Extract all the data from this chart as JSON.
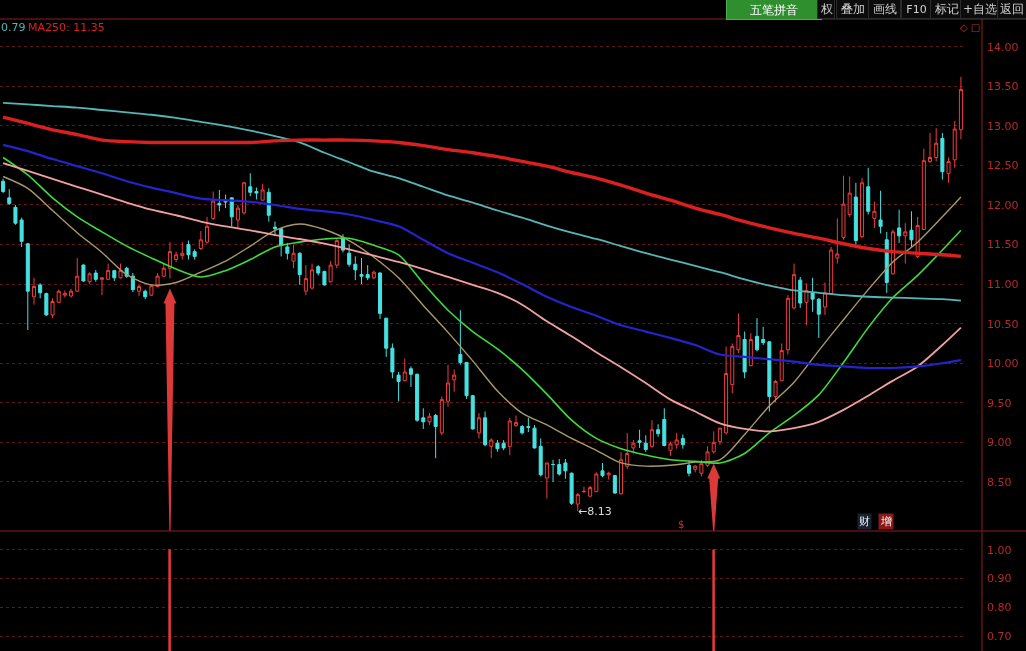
{
  "chart_data": [
    {
      "type": "candlestick",
      "categories": [
        null,
        null,
        null,
        null,
        null,
        null,
        null,
        null,
        null,
        null,
        null,
        null,
        null,
        null,
        null,
        null,
        null,
        null,
        null,
        null,
        null,
        null,
        null,
        null,
        null,
        null,
        null,
        null,
        null,
        null,
        null,
        null,
        null,
        null,
        null,
        null,
        null,
        null,
        null,
        null,
        null,
        null,
        null,
        null,
        null,
        null,
        null,
        null,
        null,
        null,
        null,
        null,
        null,
        null,
        null,
        null,
        null,
        null,
        null,
        null,
        null,
        null,
        null,
        null,
        null,
        null,
        null,
        null,
        null,
        null,
        null,
        null,
        null,
        null,
        null,
        null,
        null,
        null,
        null,
        null,
        null,
        null,
        null,
        null,
        null,
        null,
        null,
        null,
        null,
        null,
        null,
        null,
        null,
        null,
        null,
        null,
        null,
        null,
        null,
        null,
        null,
        null,
        null,
        null,
        null,
        null,
        null,
        null,
        null,
        null,
        null,
        null,
        null,
        null,
        null,
        null,
        null,
        null,
        null,
        null,
        null,
        null,
        null,
        null,
        null,
        null,
        null,
        null,
        null,
        null,
        null,
        null,
        null,
        null,
        null,
        null,
        null,
        null,
        null,
        null,
        null,
        null,
        null,
        null,
        null,
        null,
        null,
        null,
        null,
        null,
        null,
        null,
        null,
        null,
        null,
        null
      ],
      "ohlc": [
        [
          12.3,
          12.33,
          12.15,
          12.17
        ],
        [
          12.09,
          12.2,
          12.0,
          12.02
        ],
        [
          11.97,
          12.0,
          11.75,
          11.77
        ],
        [
          11.81,
          11.84,
          11.47,
          11.54
        ],
        [
          11.51,
          11.52,
          10.42,
          10.91
        ],
        [
          10.84,
          11.08,
          10.74,
          10.97
        ],
        [
          10.99,
          11.01,
          10.82,
          10.89
        ],
        [
          10.88,
          10.89,
          10.6,
          10.61
        ],
        [
          10.61,
          10.82,
          10.57,
          10.78
        ],
        [
          10.77,
          10.93,
          10.76,
          10.91
        ],
        [
          10.86,
          10.92,
          10.83,
          10.88
        ],
        [
          10.85,
          10.94,
          10.83,
          10.91
        ],
        [
          10.91,
          11.33,
          10.9,
          11.1
        ],
        [
          11.24,
          11.25,
          11.03,
          11.04
        ],
        [
          11.03,
          11.15,
          11.0,
          11.13
        ],
        [
          11.14,
          11.18,
          11.03,
          11.06
        ],
        [
          11.06,
          11.08,
          10.86,
          11.08
        ],
        [
          11.06,
          11.26,
          11.05,
          11.17
        ],
        [
          11.17,
          11.18,
          11.04,
          11.08
        ],
        [
          11.08,
          11.26,
          11.07,
          11.17
        ],
        [
          11.2,
          11.22,
          11.08,
          11.1
        ],
        [
          11.1,
          11.14,
          10.9,
          10.93
        ],
        [
          10.91,
          10.99,
          10.85,
          10.97
        ],
        [
          10.91,
          10.93,
          10.81,
          10.84
        ],
        [
          10.86,
          10.99,
          10.85,
          10.98
        ],
        [
          10.97,
          11.14,
          10.96,
          11.1
        ],
        [
          11.1,
          11.26,
          11.09,
          11.2
        ],
        [
          11.2,
          11.53,
          11.07,
          11.41
        ],
        [
          11.31,
          11.41,
          11.28,
          11.37
        ],
        [
          11.36,
          11.53,
          11.31,
          11.39
        ],
        [
          11.5,
          11.55,
          11.31,
          11.37
        ],
        [
          11.41,
          11.44,
          11.31,
          11.35
        ],
        [
          11.45,
          11.67,
          11.43,
          11.56
        ],
        [
          11.53,
          11.85,
          11.51,
          11.73
        ],
        [
          11.83,
          12.17,
          11.81,
          12.05
        ],
        [
          12.02,
          12.19,
          11.92,
          12.0
        ],
        [
          12.05,
          12.13,
          11.96,
          12.04
        ],
        [
          12.09,
          12.1,
          11.73,
          11.85
        ],
        [
          11.81,
          12.0,
          11.71,
          11.96
        ],
        [
          11.9,
          12.29,
          11.88,
          12.28
        ],
        [
          12.23,
          12.4,
          12.11,
          12.16
        ],
        [
          12.17,
          12.22,
          12.07,
          12.15
        ],
        [
          12.06,
          12.27,
          12.06,
          12.19
        ],
        [
          12.16,
          12.21,
          11.79,
          11.87
        ],
        [
          11.72,
          11.79,
          11.62,
          11.7
        ],
        [
          11.7,
          11.71,
          11.35,
          11.49
        ],
        [
          11.47,
          11.52,
          11.31,
          11.39
        ],
        [
          11.29,
          11.5,
          11.2,
          11.39
        ],
        [
          11.39,
          11.4,
          10.99,
          11.12
        ],
        [
          10.91,
          11.24,
          10.86,
          11.07
        ],
        [
          10.95,
          11.26,
          10.93,
          11.18
        ],
        [
          11.22,
          11.24,
          11.11,
          11.14
        ],
        [
          11.16,
          11.17,
          10.98,
          10.99
        ],
        [
          11.03,
          11.29,
          11.02,
          11.24
        ],
        [
          11.24,
          11.58,
          11.2,
          11.55
        ],
        [
          11.59,
          11.63,
          11.4,
          11.43
        ],
        [
          11.39,
          11.5,
          11.22,
          11.25
        ],
        [
          11.25,
          11.35,
          11.05,
          11.18
        ],
        [
          11.12,
          11.33,
          11.0,
          11.1
        ],
        [
          11.12,
          11.24,
          11.05,
          11.08
        ],
        [
          11.08,
          11.17,
          11.06,
          11.15
        ],
        [
          11.14,
          11.15,
          10.56,
          10.63
        ],
        [
          10.57,
          10.57,
          10.08,
          10.19
        ],
        [
          10.19,
          10.25,
          9.81,
          9.89
        ],
        [
          9.85,
          9.89,
          9.52,
          9.77
        ],
        [
          9.78,
          10.06,
          9.77,
          9.89
        ],
        [
          9.93,
          9.96,
          9.7,
          9.86
        ],
        [
          9.86,
          9.87,
          9.26,
          9.28
        ],
        [
          9.31,
          9.43,
          9.17,
          9.26
        ],
        [
          9.26,
          9.37,
          9.22,
          9.33
        ],
        [
          9.34,
          9.36,
          8.8,
          9.2
        ],
        [
          9.12,
          9.58,
          9.09,
          9.54
        ],
        [
          9.52,
          9.98,
          9.45,
          9.75
        ],
        [
          9.79,
          9.92,
          9.64,
          9.85
        ],
        [
          10.11,
          10.67,
          9.98,
          10.01
        ],
        [
          10.01,
          10.01,
          9.55,
          9.59
        ],
        [
          9.59,
          9.6,
          9.16,
          9.17
        ],
        [
          9.12,
          9.37,
          9.05,
          9.31
        ],
        [
          9.31,
          9.39,
          8.95,
          8.97
        ],
        [
          8.95,
          9.05,
          8.8,
          9.03
        ],
        [
          8.99,
          9.03,
          8.88,
          8.92
        ],
        [
          8.99,
          9.03,
          8.9,
          8.93
        ],
        [
          8.95,
          9.31,
          8.84,
          9.27
        ],
        [
          9.21,
          9.34,
          9.2,
          9.25
        ],
        [
          9.2,
          9.22,
          9.1,
          9.12
        ],
        [
          9.2,
          9.31,
          9.13,
          9.19
        ],
        [
          9.18,
          9.22,
          8.92,
          8.93
        ],
        [
          8.95,
          9.05,
          8.57,
          8.59
        ],
        [
          8.55,
          8.74,
          8.29,
          8.74
        ],
        [
          8.72,
          8.78,
          8.5,
          8.72
        ],
        [
          8.72,
          8.79,
          8.58,
          8.6
        ],
        [
          8.74,
          8.79,
          8.54,
          8.64
        ],
        [
          8.61,
          8.62,
          8.21,
          8.23
        ],
        [
          8.22,
          8.36,
          8.13,
          8.34
        ],
        [
          8.38,
          8.44,
          8.36,
          8.38
        ],
        [
          8.32,
          8.45,
          8.31,
          8.43
        ],
        [
          8.38,
          8.62,
          8.37,
          8.6
        ],
        [
          8.64,
          8.74,
          8.56,
          8.58
        ],
        [
          8.59,
          8.63,
          8.53,
          8.61
        ],
        [
          8.58,
          8.59,
          8.35,
          8.36
        ],
        [
          8.35,
          8.88,
          8.34,
          8.78
        ],
        [
          8.7,
          9.12,
          8.66,
          8.86
        ],
        [
          8.93,
          9.03,
          8.86,
          8.99
        ],
        [
          9.02,
          9.16,
          8.93,
          9.0
        ],
        [
          8.99,
          9.09,
          8.88,
          8.91
        ],
        [
          8.95,
          9.28,
          8.93,
          9.16
        ],
        [
          9.16,
          9.23,
          9.07,
          9.11
        ],
        [
          9.29,
          9.43,
          8.95,
          8.96
        ],
        [
          8.9,
          9.01,
          8.83,
          8.98
        ],
        [
          8.97,
          9.12,
          8.92,
          9.03
        ],
        [
          9.05,
          9.1,
          8.92,
          8.97
        ],
        [
          8.71,
          8.77,
          8.57,
          8.61
        ],
        [
          8.66,
          8.71,
          8.62,
          8.7
        ],
        [
          8.61,
          8.78,
          8.57,
          8.73
        ],
        [
          8.71,
          8.95,
          8.69,
          8.88
        ],
        [
          8.88,
          9.14,
          8.86,
          9.0
        ],
        [
          9.01,
          9.18,
          8.97,
          9.18
        ],
        [
          9.12,
          10.21,
          9.1,
          9.87
        ],
        [
          9.73,
          10.25,
          9.62,
          10.21
        ],
        [
          10.17,
          10.63,
          10.13,
          10.35
        ],
        [
          10.3,
          10.4,
          9.81,
          9.89
        ],
        [
          9.97,
          10.38,
          9.96,
          10.3
        ],
        [
          10.34,
          10.57,
          10.15,
          10.17
        ],
        [
          10.3,
          10.46,
          10.23,
          10.26
        ],
        [
          10.27,
          10.28,
          9.39,
          9.58
        ],
        [
          9.58,
          9.79,
          9.51,
          9.77
        ],
        [
          9.78,
          10.25,
          9.77,
          10.16
        ],
        [
          10.17,
          10.86,
          10.11,
          10.82
        ],
        [
          10.7,
          11.26,
          10.68,
          11.12
        ],
        [
          11.05,
          11.09,
          10.7,
          10.76
        ],
        [
          10.77,
          11.01,
          10.48,
          10.92
        ],
        [
          10.89,
          11.08,
          10.65,
          10.81
        ],
        [
          10.81,
          10.82,
          10.32,
          10.62
        ],
        [
          10.71,
          11.02,
          10.61,
          10.89
        ],
        [
          10.88,
          11.47,
          10.87,
          11.43
        ],
        [
          11.33,
          11.83,
          11.26,
          11.38
        ],
        [
          11.59,
          12.37,
          11.56,
          12.01
        ],
        [
          11.88,
          12.36,
          11.85,
          12.15
        ],
        [
          12.1,
          12.28,
          11.48,
          11.55
        ],
        [
          11.6,
          12.34,
          11.58,
          12.28
        ],
        [
          12.23,
          12.47,
          11.88,
          11.92
        ],
        [
          11.83,
          12.04,
          11.71,
          11.92
        ],
        [
          11.81,
          12.18,
          11.64,
          11.73
        ],
        [
          11.56,
          11.66,
          10.89,
          11.02
        ],
        [
          11.13,
          11.69,
          11.12,
          11.66
        ],
        [
          11.71,
          11.94,
          11.52,
          11.61
        ],
        [
          11.61,
          11.77,
          11.26,
          11.66
        ],
        [
          11.68,
          11.92,
          11.47,
          11.56
        ],
        [
          11.35,
          11.85,
          11.33,
          11.74
        ],
        [
          11.69,
          12.71,
          11.69,
          12.56
        ],
        [
          12.55,
          12.91,
          12.53,
          12.6
        ],
        [
          12.6,
          12.97,
          12.55,
          12.78
        ],
        [
          12.84,
          12.91,
          12.32,
          12.42
        ],
        [
          12.4,
          12.6,
          12.28,
          12.55
        ],
        [
          12.57,
          13.06,
          12.47,
          12.96
        ],
        [
          12.95,
          13.62,
          12.83,
          13.46
        ]
      ],
      "series": [
        {
          "type": "line",
          "color": "#a89a66",
          "values": [
            12.36,
            null,
            null,
            null,
            12.21,
            null,
            null,
            null,
            11.93,
            null,
            null,
            null,
            11.65,
            null,
            null,
            null,
            11.4,
            null,
            null,
            null,
            11.12,
            null,
            null,
            null,
            10.99,
            null,
            null,
            null,
            11.02,
            null,
            null,
            null,
            11.15,
            null,
            null,
            null,
            11.29,
            null,
            null,
            null,
            11.48,
            null,
            null,
            null,
            11.68,
            null,
            null,
            null,
            11.76,
            null,
            null,
            null,
            11.69,
            null,
            null,
            null,
            11.55,
            null,
            null,
            null,
            11.34,
            null,
            null,
            null,
            11.08,
            null,
            null,
            null,
            10.73,
            null,
            null,
            null,
            10.39,
            null,
            null,
            null,
            10.03,
            null,
            null,
            null,
            9.65,
            null,
            null,
            null,
            9.37,
            null,
            null,
            null,
            9.22,
            null,
            null,
            null,
            9.05,
            null,
            null,
            null,
            8.9,
            null,
            null,
            null,
            8.74,
            null,
            null,
            null,
            8.7,
            null,
            null,
            null,
            8.71,
            null,
            null,
            null,
            8.75,
            null,
            null,
            null,
            8.78,
            null,
            null,
            null,
            9.1,
            null,
            null,
            null,
            9.46,
            null,
            null,
            null,
            9.76,
            null,
            null,
            null,
            10.16,
            null,
            null,
            null,
            10.55,
            null,
            null,
            null,
            10.93,
            null,
            null,
            null,
            11.28,
            null,
            null,
            null,
            11.53,
            null,
            null,
            null,
            11.85,
            null,
            null,
            12.1
          ]
        },
        {
          "type": "line",
          "color": "#3cdc3c",
          "values": [
            12.6,
            null,
            null,
            null,
            12.38,
            null,
            null,
            null,
            12.09,
            null,
            null,
            null,
            11.85,
            null,
            null,
            null,
            11.66,
            null,
            null,
            null,
            11.48,
            null,
            null,
            null,
            11.33,
            null,
            null,
            null,
            11.19,
            null,
            null,
            null,
            11.09,
            null,
            null,
            null,
            11.17,
            null,
            null,
            null,
            11.31,
            null,
            null,
            null,
            11.47,
            null,
            null,
            null,
            11.53,
            null,
            null,
            null,
            11.57,
            null,
            null,
            null,
            11.58,
            null,
            null,
            null,
            11.49,
            null,
            null,
            null,
            11.37,
            null,
            null,
            null,
            11.01,
            null,
            null,
            null,
            10.67,
            null,
            null,
            null,
            10.4,
            null,
            null,
            null,
            10.18,
            null,
            null,
            null,
            9.92,
            null,
            null,
            null,
            9.61,
            null,
            null,
            null,
            9.28,
            null,
            null,
            null,
            9.05,
            null,
            null,
            null,
            8.92,
            null,
            null,
            null,
            8.84,
            null,
            null,
            null,
            8.78,
            null,
            null,
            null,
            8.76,
            null,
            null,
            null,
            8.74,
            null,
            null,
            null,
            8.86,
            null,
            null,
            null,
            9.12,
            null,
            null,
            null,
            9.34,
            null,
            null,
            null,
            9.6,
            null,
            null,
            null,
            10.01,
            null,
            null,
            null,
            10.45,
            null,
            null,
            null,
            10.83,
            null,
            null,
            null,
            11.11,
            null,
            null,
            null,
            11.43,
            null,
            null,
            11.68
          ]
        },
        {
          "type": "line",
          "color": "#f0a0a0",
          "values": [
            12.53,
            null,
            null,
            null,
            12.43,
            null,
            null,
            null,
            12.33,
            null,
            null,
            null,
            12.23,
            null,
            null,
            null,
            12.13,
            null,
            null,
            null,
            12.03,
            null,
            null,
            null,
            11.94,
            null,
            null,
            null,
            11.87,
            null,
            null,
            null,
            11.79,
            null,
            null,
            null,
            11.73,
            null,
            null,
            null,
            11.68,
            null,
            null,
            null,
            11.62,
            null,
            null,
            null,
            11.57,
            null,
            null,
            null,
            11.51,
            null,
            null,
            null,
            11.44,
            null,
            null,
            null,
            11.36,
            null,
            null,
            null,
            11.28,
            null,
            null,
            null,
            11.19,
            null,
            null,
            null,
            11.09,
            null,
            null,
            null,
            10.99,
            null,
            null,
            null,
            10.89,
            null,
            null,
            null,
            10.74,
            null,
            null,
            null,
            10.53,
            null,
            null,
            null,
            10.34,
            null,
            null,
            null,
            10.14,
            null,
            null,
            null,
            9.95,
            null,
            null,
            null,
            9.75,
            null,
            null,
            null,
            9.54,
            null,
            null,
            null,
            9.39,
            null,
            null,
            null,
            9.24,
            null,
            null,
            null,
            9.17,
            null,
            null,
            null,
            9.14,
            null,
            null,
            null,
            9.18,
            null,
            null,
            null,
            9.26,
            null,
            null,
            null,
            9.41,
            null,
            null,
            null,
            9.59,
            null,
            null,
            null,
            9.78,
            null,
            null,
            null,
            9.96,
            null,
            null,
            null,
            10.23,
            null,
            null,
            10.45
          ]
        },
        {
          "type": "line",
          "color": "#2424cc",
          "values": [
            12.76,
            null,
            null,
            null,
            12.68,
            null,
            null,
            null,
            12.58,
            null,
            null,
            null,
            12.49,
            null,
            null,
            null,
            12.4,
            null,
            null,
            null,
            12.3,
            null,
            null,
            null,
            12.22,
            null,
            null,
            null,
            12.15,
            null,
            null,
            null,
            12.08,
            null,
            null,
            null,
            12.06,
            null,
            null,
            null,
            12.04,
            null,
            null,
            null,
            12.0,
            null,
            null,
            null,
            11.95,
            null,
            null,
            null,
            11.92,
            null,
            null,
            null,
            11.88,
            null,
            null,
            null,
            11.81,
            null,
            null,
            null,
            11.73,
            null,
            null,
            null,
            11.56,
            null,
            null,
            null,
            11.39,
            null,
            null,
            null,
            11.27,
            null,
            null,
            null,
            11.15,
            null,
            null,
            null,
            11.0,
            null,
            null,
            null,
            10.84,
            null,
            null,
            null,
            10.71,
            null,
            null,
            null,
            10.6,
            null,
            null,
            null,
            10.48,
            null,
            null,
            null,
            10.4,
            null,
            null,
            null,
            10.32,
            null,
            null,
            null,
            10.23,
            null,
            null,
            null,
            10.11,
            null,
            null,
            null,
            10.08,
            null,
            null,
            null,
            10.05,
            null,
            null,
            null,
            10.02,
            null,
            null,
            null,
            9.98,
            null,
            null,
            null,
            9.96,
            null,
            null,
            null,
            9.94,
            null,
            null,
            null,
            9.94,
            null,
            null,
            null,
            9.96,
            null,
            null,
            null,
            10.0,
            null,
            null,
            10.04
          ]
        },
        {
          "type": "line",
          "name": "0.79",
          "color": "#54b6b6",
          "values": [
            13.29,
            null,
            null,
            null,
            13.27,
            null,
            null,
            null,
            13.25,
            null,
            null,
            null,
            13.23,
            null,
            null,
            null,
            13.2,
            null,
            null,
            null,
            13.17,
            null,
            null,
            null,
            13.14,
            null,
            null,
            null,
            13.1,
            null,
            null,
            null,
            13.05,
            null,
            null,
            null,
            13.0,
            null,
            null,
            null,
            12.94,
            null,
            null,
            null,
            12.87,
            null,
            null,
            null,
            12.79,
            null,
            null,
            null,
            12.66,
            null,
            null,
            null,
            12.54,
            null,
            null,
            null,
            12.42,
            null,
            null,
            null,
            12.34,
            null,
            null,
            null,
            12.23,
            null,
            null,
            null,
            12.12,
            null,
            null,
            null,
            12.03,
            null,
            null,
            null,
            11.93,
            null,
            null,
            null,
            11.84,
            null,
            null,
            null,
            11.74,
            null,
            null,
            null,
            11.65,
            null,
            null,
            null,
            11.57,
            null,
            null,
            null,
            11.48,
            null,
            null,
            null,
            11.39,
            null,
            null,
            null,
            11.31,
            null,
            null,
            null,
            11.23,
            null,
            null,
            null,
            11.15,
            null,
            null,
            null,
            11.06,
            null,
            null,
            null,
            10.98,
            null,
            null,
            null,
            10.92,
            null,
            null,
            null,
            10.89,
            null,
            null,
            null,
            10.86,
            null,
            null,
            null,
            10.84,
            null,
            null,
            null,
            10.83,
            null,
            null,
            null,
            10.82,
            null,
            null,
            null,
            10.81,
            null,
            null,
            10.79
          ]
        },
        {
          "type": "line",
          "name": "MA250: 11.35",
          "color": "#dc2020",
          "values": [
            13.11,
            null,
            null,
            null,
            13.03,
            null,
            null,
            null,
            12.95,
            null,
            null,
            null,
            12.89,
            null,
            null,
            null,
            12.82,
            null,
            null,
            null,
            12.8,
            null,
            null,
            null,
            12.79,
            null,
            null,
            null,
            12.79,
            null,
            null,
            null,
            12.79,
            null,
            null,
            null,
            12.79,
            null,
            null,
            null,
            12.79,
            null,
            null,
            null,
            12.81,
            null,
            null,
            null,
            12.82,
            null,
            null,
            null,
            12.82,
            null,
            null,
            null,
            12.82,
            null,
            null,
            null,
            12.81,
            null,
            null,
            null,
            12.79,
            null,
            null,
            null,
            12.75,
            null,
            null,
            null,
            12.7,
            null,
            null,
            null,
            12.66,
            null,
            null,
            null,
            12.61,
            null,
            null,
            null,
            12.55,
            null,
            null,
            null,
            12.49,
            null,
            null,
            null,
            12.41,
            null,
            null,
            null,
            12.34,
            null,
            null,
            null,
            12.25,
            null,
            null,
            null,
            12.15,
            null,
            null,
            null,
            12.06,
            null,
            null,
            null,
            11.96,
            null,
            null,
            null,
            11.88,
            null,
            null,
            null,
            11.79,
            null,
            null,
            null,
            11.71,
            null,
            null,
            null,
            11.64,
            null,
            null,
            null,
            11.58,
            null,
            null,
            null,
            11.51,
            null,
            null,
            null,
            11.45,
            null,
            null,
            null,
            11.41,
            null,
            null,
            null,
            11.39,
            null,
            null,
            null,
            11.37,
            null,
            null,
            11.35
          ]
        }
      ],
      "ylim": [
        7.88,
        14.35
      ],
      "yticks": [
        {
          "value": 8.5,
          "label": "8.50"
        },
        {
          "value": 9,
          "label": "9.00"
        },
        {
          "value": 9.5,
          "label": "9.50"
        },
        {
          "value": 10,
          "label": "10.00"
        },
        {
          "value": 10.5,
          "label": "10.50"
        },
        {
          "value": 11,
          "label": "11.00"
        },
        {
          "value": 11.5,
          "label": "11.50"
        },
        {
          "value": 12,
          "label": "12.00"
        },
        {
          "value": 12.5,
          "label": "12.50"
        },
        {
          "value": 13,
          "label": "13.00"
        },
        {
          "value": 13.5,
          "label": "13.50"
        },
        {
          "value": 14,
          "label": "14.00"
        }
      ],
      "tick_labels": "y",
      "grid": "y",
      "annotations": [
        "五笔拼音",
        "权",
        "叠加",
        "画线",
        "F10",
        "标记",
        "+自选",
        "返回",
        "◇ □",
        "$",
        "财",
        "增",
        "←8.13"
      ]
    },
    {
      "type": "bar",
      "categories": [
        null,
        null,
        null,
        null,
        null,
        null,
        null,
        null,
        null,
        null,
        null,
        null,
        null,
        null,
        null,
        null,
        null,
        null,
        null,
        null,
        null,
        null,
        null,
        null,
        null,
        null,
        null,
        null,
        null,
        null,
        null,
        null,
        null,
        null,
        null,
        null,
        null,
        null,
        null,
        null,
        null,
        null,
        null,
        null,
        null,
        null,
        null,
        null,
        null,
        null,
        null,
        null,
        null,
        null,
        null,
        null,
        null,
        null,
        null,
        null,
        null,
        null,
        null,
        null,
        null,
        null,
        null,
        null,
        null,
        null,
        null,
        null,
        null,
        null,
        null,
        null,
        null,
        null,
        null,
        null,
        null,
        null,
        null,
        null,
        null,
        null,
        null,
        null,
        null,
        null,
        null,
        null,
        null,
        null,
        null,
        null,
        null,
        null,
        null,
        null,
        null,
        null,
        null,
        null,
        null,
        null,
        null,
        null,
        null,
        null,
        null,
        null,
        null,
        null,
        null,
        null,
        null,
        null,
        null,
        null,
        null,
        null,
        null,
        null,
        null,
        null,
        null,
        null,
        null,
        null,
        null,
        null,
        null,
        null,
        null,
        null,
        null,
        null,
        null,
        null,
        null,
        null,
        null,
        null,
        null,
        null,
        null,
        null,
        null,
        null,
        null,
        null,
        null,
        null,
        null,
        null
      ],
      "values": [
        null,
        null,
        null,
        null,
        null,
        null,
        null,
        null,
        null,
        null,
        null,
        null,
        null,
        null,
        null,
        null,
        null,
        null,
        null,
        null,
        null,
        null,
        null,
        null,
        null,
        null,
        null,
        1,
        null,
        null,
        null,
        null,
        null,
        null,
        null,
        null,
        null,
        null,
        null,
        null,
        null,
        null,
        null,
        null,
        null,
        null,
        null,
        null,
        null,
        null,
        null,
        null,
        null,
        null,
        null,
        null,
        null,
        null,
        null,
        null,
        null,
        null,
        null,
        null,
        null,
        null,
        null,
        null,
        null,
        null,
        null,
        null,
        null,
        null,
        null,
        null,
        null,
        null,
        null,
        null,
        null,
        null,
        null,
        null,
        null,
        null,
        null,
        null,
        null,
        null,
        null,
        null,
        null,
        null,
        null,
        null,
        null,
        null,
        null,
        null,
        null,
        null,
        null,
        null,
        null,
        null,
        null,
        null,
        null,
        null,
        null,
        null,
        null,
        null,
        null,
        1,
        null,
        null,
        null,
        null,
        null,
        null,
        null,
        null,
        null,
        null,
        null,
        null,
        null,
        null,
        null,
        null,
        null,
        null,
        null,
        null,
        null,
        null,
        null,
        null,
        null,
        null,
        null,
        null,
        null,
        null,
        null,
        null,
        null,
        null,
        null,
        null,
        null,
        null,
        null,
        null
      ],
      "color": "#e83c3c",
      "ylim": [
        0.648,
        1.062
      ],
      "yticks": [
        {
          "value": 0.7,
          "label": "0.70"
        },
        {
          "value": 0.8,
          "label": "0.80"
        },
        {
          "value": 0.9,
          "label": "0.90"
        },
        {
          "value": 1,
          "label": "1.00"
        }
      ],
      "tick_labels": "y",
      "grid": "y"
    }
  ]
}
